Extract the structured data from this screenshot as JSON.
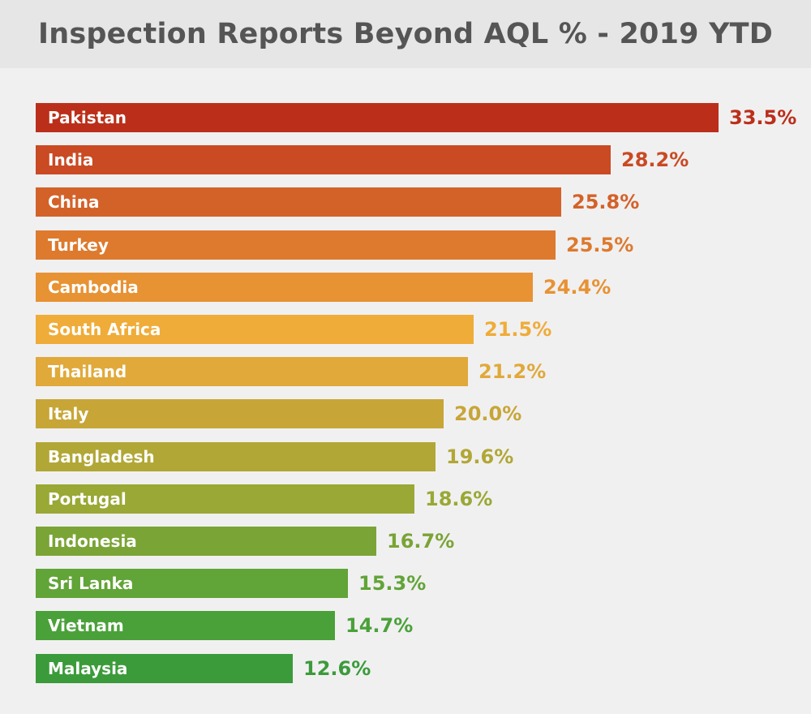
{
  "chart_data": {
    "type": "bar",
    "orientation": "horizontal",
    "title": "Inspection Reports Beyond AQL % - 2019 YTD",
    "categories": [
      "Pakistan",
      "India",
      "China",
      "Turkey",
      "Cambodia",
      "South Africa",
      "Thailand",
      "Italy",
      "Bangladesh",
      "Portugal",
      "Indonesia",
      "Sri Lanka",
      "Vietnam",
      "Malaysia"
    ],
    "values": [
      33.5,
      28.2,
      25.8,
      25.5,
      24.4,
      21.5,
      21.2,
      20.0,
      19.6,
      18.6,
      16.7,
      15.3,
      14.7,
      12.6
    ],
    "value_labels": [
      "33.5%",
      "28.2%",
      "25.8%",
      "25.5%",
      "24.4%",
      "21.5%",
      "21.2%",
      "20.0%",
      "19.6%",
      "18.6%",
      "16.7%",
      "15.3%",
      "14.7%",
      "12.6%"
    ],
    "colors": [
      "#bb2f1a",
      "#c94a23",
      "#d36229",
      "#dd7a2d",
      "#e79233",
      "#efac38",
      "#e0a939",
      "#c7a637",
      "#b1a736",
      "#9aa835",
      "#7aa436",
      "#61a437",
      "#4aa139",
      "#3b9b3a"
    ],
    "xlim": [
      0,
      33.5
    ],
    "grid": false,
    "legend": "none"
  }
}
